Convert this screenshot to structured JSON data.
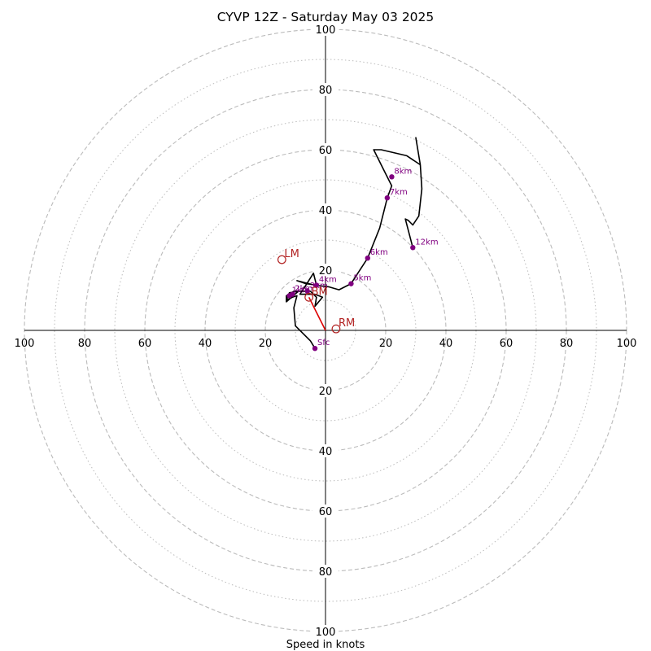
{
  "chart_data": {
    "type": "hodograph",
    "title": "CYVP 12Z - Saturday May 03 2025",
    "xlabel": "Speed in knots",
    "units": "knots",
    "range": 100,
    "rings_major": [
      20,
      40,
      60,
      80,
      100
    ],
    "rings_minor": [
      10,
      30,
      50,
      70,
      90
    ],
    "tick_labels": [
      "20",
      "40",
      "60",
      "80",
      "100"
    ],
    "grid": true,
    "colors": {
      "trace": "#000000",
      "height_marker": "#800080",
      "storm_motion": "#b22222",
      "mean_wind": "#dd0000",
      "grid": "#bbbbbb"
    },
    "hodograph_uv": [
      [
        -3.5,
        -6
      ],
      [
        -5,
        -3.5
      ],
      [
        -10,
        1.5
      ],
      [
        -10.5,
        7.5
      ],
      [
        -9.5,
        11.5
      ],
      [
        -11,
        11
      ],
      [
        -13,
        10
      ],
      [
        -12,
        12.5
      ],
      [
        -9,
        13
      ],
      [
        -13,
        9.5
      ],
      [
        -13,
        11.5
      ],
      [
        -10.5,
        13
      ],
      [
        -5,
        13
      ],
      [
        -3,
        11
      ],
      [
        -3.5,
        8
      ],
      [
        -1,
        11
      ],
      [
        -3.5,
        12
      ],
      [
        -8.5,
        12
      ],
      [
        -6.5,
        15
      ],
      [
        -4,
        19
      ],
      [
        -3,
        15
      ],
      [
        -6.5,
        15.5
      ],
      [
        -9.5,
        16.5
      ],
      [
        -3.5,
        15
      ],
      [
        1,
        14.5
      ],
      [
        4.5,
        13.5
      ],
      [
        8.5,
        15.5
      ],
      [
        14,
        24
      ],
      [
        18,
        34
      ],
      [
        20.5,
        44
      ],
      [
        22,
        48
      ],
      [
        19.5,
        53
      ],
      [
        16,
        60
      ],
      [
        18.5,
        60
      ],
      [
        27,
        58
      ],
      [
        31.5,
        55
      ],
      [
        30,
        64
      ],
      [
        31.5,
        55
      ],
      [
        32,
        47
      ],
      [
        31,
        38
      ],
      [
        29,
        35
      ],
      [
        27.5,
        36.5
      ],
      [
        26.5,
        37
      ],
      [
        29,
        27.5
      ]
    ],
    "height_markers": [
      {
        "label": "Sfc",
        "u": -3.5,
        "v": -6
      },
      {
        "label": "1km",
        "u": -12,
        "v": 11.5
      },
      {
        "label": "2km",
        "u": -11,
        "v": 12
      },
      {
        "label": "3km",
        "u": -6,
        "v": 13
      },
      {
        "label": "4km",
        "u": -3,
        "v": 15
      },
      {
        "label": "5km",
        "u": 8.5,
        "v": 15.5
      },
      {
        "label": "6km",
        "u": 14,
        "v": 24
      },
      {
        "label": "7km",
        "u": 20.5,
        "v": 44
      },
      {
        "label": "8km",
        "u": 22,
        "v": 51
      },
      {
        "label": "12km",
        "u": 29,
        "v": 27.5
      }
    ],
    "storm_motion": [
      {
        "label": "LM",
        "u": -14.5,
        "v": 23.5
      },
      {
        "label": "RM",
        "u": 3.5,
        "v": 0.5
      },
      {
        "label": "BM",
        "u": -5.5,
        "v": 11
      }
    ],
    "mean_wind_vector": {
      "from": [
        0,
        0
      ],
      "to": [
        -5.5,
        11
      ]
    }
  }
}
